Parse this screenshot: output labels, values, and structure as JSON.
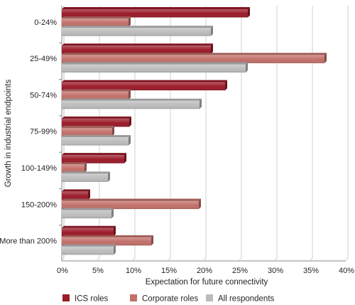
{
  "chart_data": {
    "type": "bar",
    "orientation": "horizontal",
    "categories": [
      "0-24%",
      "25-49%",
      "50-74%",
      "75-99%",
      "100-149%",
      "150-200%",
      "More than 200%"
    ],
    "series": [
      {
        "name": "ICS roles",
        "color": "#9b1b2a",
        "values": [
          26.2,
          21.0,
          23.0,
          9.5,
          8.8,
          3.7,
          7.3
        ]
      },
      {
        "name": "Corporate roles",
        "color": "#c2706a",
        "values": [
          9.4,
          37.0,
          9.4,
          7.1,
          3.2,
          19.3,
          12.6
        ]
      },
      {
        "name": "All respondents",
        "color": "#bcbcbc",
        "values": [
          21.0,
          25.9,
          19.4,
          9.4,
          6.5,
          7.0,
          7.3
        ]
      }
    ],
    "xlabel": "Expectation for future connectivity",
    "ylabel": "Growth in industrial endpoints",
    "xlim": [
      0,
      40
    ],
    "xticks": [
      "0%",
      "5%",
      "10%",
      "15%",
      "20%",
      "25%",
      "30%",
      "35%",
      "40%"
    ],
    "grid": "vertical",
    "legend_position": "bottom"
  }
}
